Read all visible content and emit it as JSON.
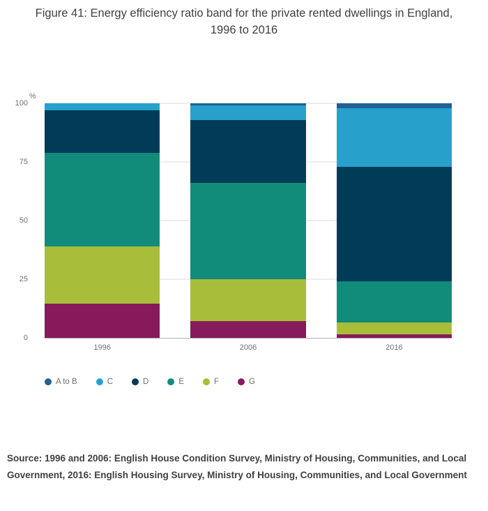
{
  "title": "Figure 41: Energy efficiency ratio band for the private rented dwellings in England, 1996 to 2016",
  "unit_label": "%",
  "source": "Source: 1996 and 2006:  English House Condition Survey, Ministry of Housing, Communities, and Local Government, 2016: English Housing Survey, Ministry of Housing, Communities, and Local Government",
  "colors": {
    "a_to_b": "#206095",
    "c": "#27a0cc",
    "d": "#003c57",
    "e": "#118c7b",
    "f": "#a8bd3a",
    "g": "#871a5b",
    "gridline": "#d9d9d9",
    "axis_line": "#b3b3b3",
    "tick_text": "#707071",
    "title_text": "#414042"
  },
  "chart_data": {
    "type": "bar",
    "stacked": true,
    "title": "Figure 41: Energy efficiency ratio band for the private rented dwellings in England, 1996 to 2016",
    "categories": [
      "1996",
      "2006",
      "2016"
    ],
    "series": [
      {
        "name": "A to B",
        "color": "#206095",
        "values": [
          0,
          1,
          2
        ]
      },
      {
        "name": "C",
        "color": "#27a0cc",
        "values": [
          3,
          6,
          25
        ]
      },
      {
        "name": "D",
        "color": "#003c57",
        "values": [
          18,
          27,
          49
        ]
      },
      {
        "name": "E",
        "color": "#118c7b",
        "values": [
          40,
          41,
          17.5
        ]
      },
      {
        "name": "F",
        "color": "#a8bd3a",
        "values": [
          24.5,
          18,
          5
        ]
      },
      {
        "name": "G",
        "color": "#871a5b",
        "values": [
          14.5,
          7,
          1.5
        ]
      }
    ],
    "xlabel": "",
    "ylabel": "%",
    "ylim": [
      0,
      100
    ],
    "yticks": [
      0,
      25,
      50,
      75,
      100
    ],
    "grid": true,
    "legend_position": "bottom",
    "bar_stack_order_bottom_to_top": [
      "G",
      "F",
      "E",
      "D",
      "C",
      "A to B"
    ]
  }
}
